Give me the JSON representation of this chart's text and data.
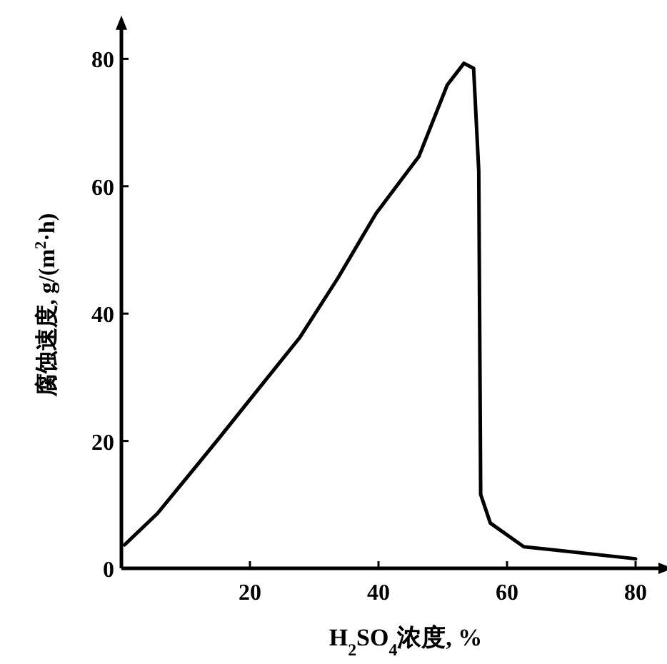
{
  "chart_data": {
    "type": "line",
    "xlabel": "H$_{2}$SO$_{4}$浓度, %",
    "ylabel": "腐蚀速度, g/(m$^{2}$·h)",
    "x": [
      0.5,
      5.6,
      15,
      19.6,
      27.8,
      33.7,
      39.6,
      46.3,
      50.7,
      53.3,
      54.8,
      55.6,
      55.9,
      57.4,
      62.6,
      80
    ],
    "series": [
      {
        "color": "#000000",
        "values": [
          3.7,
          8.6,
          20.2,
          26,
          36.3,
          45.6,
          55.7,
          64.7,
          75.9,
          79.3,
          78.5,
          62.4,
          11.6,
          7.1,
          3.4,
          1.5
        ]
      }
    ],
    "xlim": [
      0,
      84
    ],
    "ylim": [
      0,
      85
    ],
    "xticks": [
      {
        "value": 0,
        "label": null
      },
      20,
      40,
      60,
      80
    ],
    "yticks": [
      0,
      20,
      40,
      60,
      80
    ],
    "grid": false,
    "marker": "none",
    "line_style": "solid"
  }
}
